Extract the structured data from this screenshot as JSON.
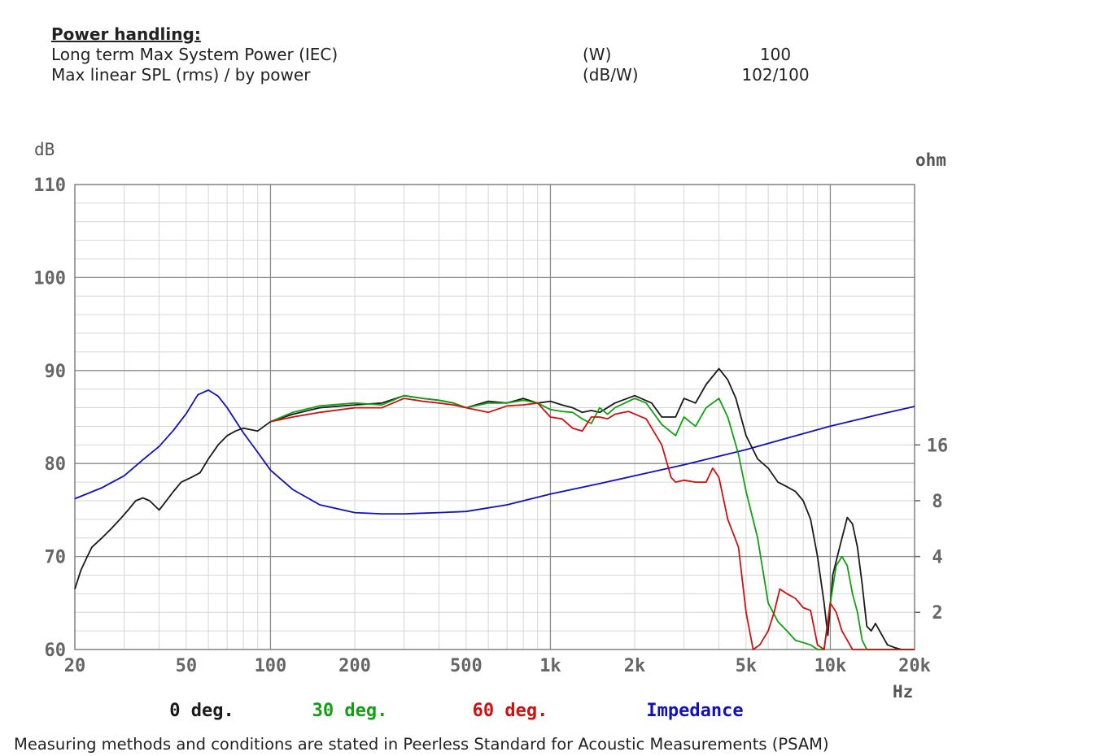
{
  "specs": {
    "heading": "Power handling:",
    "rows": [
      {
        "label": "Long term Max System Power (IEC)",
        "unit": "(W)",
        "value": "100"
      },
      {
        "label": "Max linear SPL (rms) / by power",
        "unit": "(dB/W)",
        "value": "102/100"
      }
    ]
  },
  "footer": "Measuring methods and conditions are stated in Peerless Standard for Acoustic Measurements (PSAM)",
  "chart_data": {
    "type": "line",
    "x_scale": "log",
    "xlabel": "Hz",
    "ylabel": "dB",
    "y2label": "ohm",
    "xlim": [
      20,
      20000
    ],
    "ylim": [
      60,
      110
    ],
    "grid": true,
    "legend_position": "bottom",
    "x_ticks": [
      {
        "value": 20,
        "label": "20"
      },
      {
        "value": 50,
        "label": "50"
      },
      {
        "value": 100,
        "label": "100"
      },
      {
        "value": 200,
        "label": "200"
      },
      {
        "value": 500,
        "label": "500"
      },
      {
        "value": 1000,
        "label": "1k"
      },
      {
        "value": 2000,
        "label": "2k"
      },
      {
        "value": 5000,
        "label": "5k"
      },
      {
        "value": 10000,
        "label": "10k"
      },
      {
        "value": 20000,
        "label": "20k"
      }
    ],
    "y_ticks": [
      {
        "value": 60,
        "label": "60"
      },
      {
        "value": 70,
        "label": "70"
      },
      {
        "value": 80,
        "label": "80"
      },
      {
        "value": 90,
        "label": "90"
      },
      {
        "value": 100,
        "label": "100"
      },
      {
        "value": 110,
        "label": "110"
      }
    ],
    "y2_ticks": [
      {
        "value": 2,
        "label": "2"
      },
      {
        "value": 4,
        "label": "4"
      },
      {
        "value": 8,
        "label": "8"
      },
      {
        "value": 16,
        "label": "16"
      }
    ],
    "y2_scale": "log2",
    "y2_db_at_ohm": {
      "ohm": 1,
      "db": 58
    },
    "y2_db_per_octave": 6,
    "series": [
      {
        "name": "0 deg.",
        "color": "#1a1a1a",
        "axis": "db",
        "points": [
          [
            20,
            66.5
          ],
          [
            21,
            68.5
          ],
          [
            22,
            69.8
          ],
          [
            23,
            71
          ],
          [
            25,
            72
          ],
          [
            27,
            73
          ],
          [
            29,
            74
          ],
          [
            31,
            75
          ],
          [
            33,
            76
          ],
          [
            35,
            76.3
          ],
          [
            37,
            76
          ],
          [
            40,
            75
          ],
          [
            42,
            75.8
          ],
          [
            45,
            77
          ],
          [
            48,
            78
          ],
          [
            52,
            78.5
          ],
          [
            56,
            79
          ],
          [
            60,
            80.5
          ],
          [
            65,
            82
          ],
          [
            70,
            83
          ],
          [
            75,
            83.5
          ],
          [
            80,
            83.8
          ],
          [
            90,
            83.5
          ],
          [
            100,
            84.5
          ],
          [
            120,
            85.3
          ],
          [
            150,
            86
          ],
          [
            200,
            86.3
          ],
          [
            250,
            86.5
          ],
          [
            300,
            87.3
          ],
          [
            350,
            87
          ],
          [
            400,
            86.8
          ],
          [
            450,
            86.5
          ],
          [
            500,
            86
          ],
          [
            600,
            86.7
          ],
          [
            700,
            86.5
          ],
          [
            800,
            87
          ],
          [
            900,
            86.5
          ],
          [
            1000,
            86.7
          ],
          [
            1100,
            86.3
          ],
          [
            1200,
            86
          ],
          [
            1300,
            85.5
          ],
          [
            1400,
            85.7
          ],
          [
            1500,
            85.5
          ],
          [
            1700,
            86.5
          ],
          [
            2000,
            87.3
          ],
          [
            2300,
            86.5
          ],
          [
            2500,
            85
          ],
          [
            2800,
            85
          ],
          [
            3000,
            87
          ],
          [
            3300,
            86.5
          ],
          [
            3600,
            88.5
          ],
          [
            4000,
            90.2
          ],
          [
            4300,
            89
          ],
          [
            4600,
            87
          ],
          [
            5000,
            83
          ],
          [
            5500,
            80.5
          ],
          [
            6000,
            79.5
          ],
          [
            6500,
            78
          ],
          [
            7000,
            77.5
          ],
          [
            7500,
            77
          ],
          [
            8000,
            76
          ],
          [
            8500,
            74
          ],
          [
            9000,
            70
          ],
          [
            9500,
            65
          ],
          [
            9800,
            61.5
          ],
          [
            10200,
            68
          ],
          [
            10800,
            71
          ],
          [
            11500,
            74.2
          ],
          [
            12000,
            73.5
          ],
          [
            12500,
            71
          ],
          [
            13000,
            67
          ],
          [
            13500,
            62.5
          ],
          [
            14000,
            62
          ],
          [
            14500,
            62.8
          ],
          [
            15000,
            62
          ],
          [
            16000,
            60.5
          ],
          [
            17000,
            60.2
          ],
          [
            18000,
            60
          ],
          [
            20000,
            60
          ]
        ]
      },
      {
        "name": "30 deg.",
        "color": "#11a011",
        "axis": "db",
        "points": [
          [
            100,
            84.5
          ],
          [
            120,
            85.5
          ],
          [
            150,
            86.2
          ],
          [
            200,
            86.5
          ],
          [
            250,
            86.3
          ],
          [
            300,
            87.3
          ],
          [
            350,
            87
          ],
          [
            400,
            86.8
          ],
          [
            450,
            86.5
          ],
          [
            500,
            86
          ],
          [
            600,
            86.5
          ],
          [
            700,
            86.5
          ],
          [
            800,
            86.8
          ],
          [
            900,
            86.5
          ],
          [
            1000,
            85.8
          ],
          [
            1100,
            85.6
          ],
          [
            1200,
            85.5
          ],
          [
            1300,
            84.8
          ],
          [
            1400,
            84.3
          ],
          [
            1500,
            86
          ],
          [
            1600,
            85.3
          ],
          [
            1700,
            86
          ],
          [
            2000,
            87
          ],
          [
            2200,
            86.5
          ],
          [
            2500,
            84.2
          ],
          [
            2800,
            83
          ],
          [
            3000,
            85
          ],
          [
            3300,
            84
          ],
          [
            3600,
            86
          ],
          [
            4000,
            87
          ],
          [
            4300,
            85
          ],
          [
            4700,
            81
          ],
          [
            5000,
            77
          ],
          [
            5500,
            72
          ],
          [
            6000,
            65
          ],
          [
            6500,
            63
          ],
          [
            7000,
            62
          ],
          [
            7500,
            61
          ],
          [
            8500,
            60.5
          ],
          [
            9000,
            60
          ],
          [
            9500,
            60
          ],
          [
            10000,
            65
          ],
          [
            10500,
            69
          ],
          [
            11000,
            70
          ],
          [
            11500,
            69
          ],
          [
            12000,
            66
          ],
          [
            12500,
            64
          ],
          [
            13000,
            61
          ],
          [
            13500,
            60
          ],
          [
            20000,
            60
          ]
        ]
      },
      {
        "name": "60 deg.",
        "color": "#cc1111",
        "axis": "db",
        "points": [
          [
            100,
            84.5
          ],
          [
            120,
            85
          ],
          [
            150,
            85.5
          ],
          [
            200,
            86
          ],
          [
            250,
            86
          ],
          [
            300,
            87
          ],
          [
            350,
            86.7
          ],
          [
            400,
            86.5
          ],
          [
            450,
            86.3
          ],
          [
            500,
            86
          ],
          [
            600,
            85.5
          ],
          [
            700,
            86.2
          ],
          [
            800,
            86.3
          ],
          [
            900,
            86.5
          ],
          [
            1000,
            85
          ],
          [
            1100,
            84.8
          ],
          [
            1200,
            83.8
          ],
          [
            1300,
            83.5
          ],
          [
            1400,
            85
          ],
          [
            1500,
            85
          ],
          [
            1600,
            84.8
          ],
          [
            1700,
            85.3
          ],
          [
            1900,
            85.6
          ],
          [
            2200,
            84.8
          ],
          [
            2500,
            82
          ],
          [
            2700,
            78.5
          ],
          [
            2800,
            78
          ],
          [
            3000,
            78.2
          ],
          [
            3300,
            78
          ],
          [
            3600,
            78
          ],
          [
            3800,
            79.5
          ],
          [
            4000,
            78.5
          ],
          [
            4300,
            74
          ],
          [
            4700,
            71
          ],
          [
            5000,
            64
          ],
          [
            5300,
            60
          ],
          [
            5600,
            60.5
          ],
          [
            6000,
            62
          ],
          [
            6300,
            64
          ],
          [
            6600,
            66.5
          ],
          [
            7000,
            66
          ],
          [
            7500,
            65.5
          ],
          [
            8000,
            64.5
          ],
          [
            8500,
            64.2
          ],
          [
            9000,
            60.5
          ],
          [
            9500,
            60
          ],
          [
            10000,
            65
          ],
          [
            10500,
            64
          ],
          [
            11000,
            62
          ],
          [
            11500,
            61
          ],
          [
            12000,
            60
          ],
          [
            20000,
            60
          ]
        ]
      },
      {
        "name": "Impedance",
        "color": "#1111bb",
        "axis": "ohm",
        "points": [
          [
            20,
            8.2
          ],
          [
            25,
            9.4
          ],
          [
            30,
            10.9
          ],
          [
            35,
            13.3
          ],
          [
            40,
            15.7
          ],
          [
            45,
            19.2
          ],
          [
            50,
            23.6
          ],
          [
            55,
            29.8
          ],
          [
            60,
            31.6
          ],
          [
            65,
            29.3
          ],
          [
            70,
            25.4
          ],
          [
            80,
            18.6
          ],
          [
            90,
            14.6
          ],
          [
            100,
            11.7
          ],
          [
            120,
            9.2
          ],
          [
            150,
            7.6
          ],
          [
            200,
            6.9
          ],
          [
            250,
            6.8
          ],
          [
            300,
            6.8
          ],
          [
            400,
            6.9
          ],
          [
            500,
            7.0
          ],
          [
            700,
            7.6
          ],
          [
            1000,
            8.7
          ],
          [
            1500,
            9.9
          ],
          [
            2000,
            10.9
          ],
          [
            3000,
            12.5
          ],
          [
            4000,
            13.9
          ],
          [
            5000,
            15.1
          ],
          [
            7000,
            17.4
          ],
          [
            10000,
            20.2
          ],
          [
            15000,
            23.4
          ],
          [
            20000,
            25.8
          ]
        ]
      }
    ]
  }
}
